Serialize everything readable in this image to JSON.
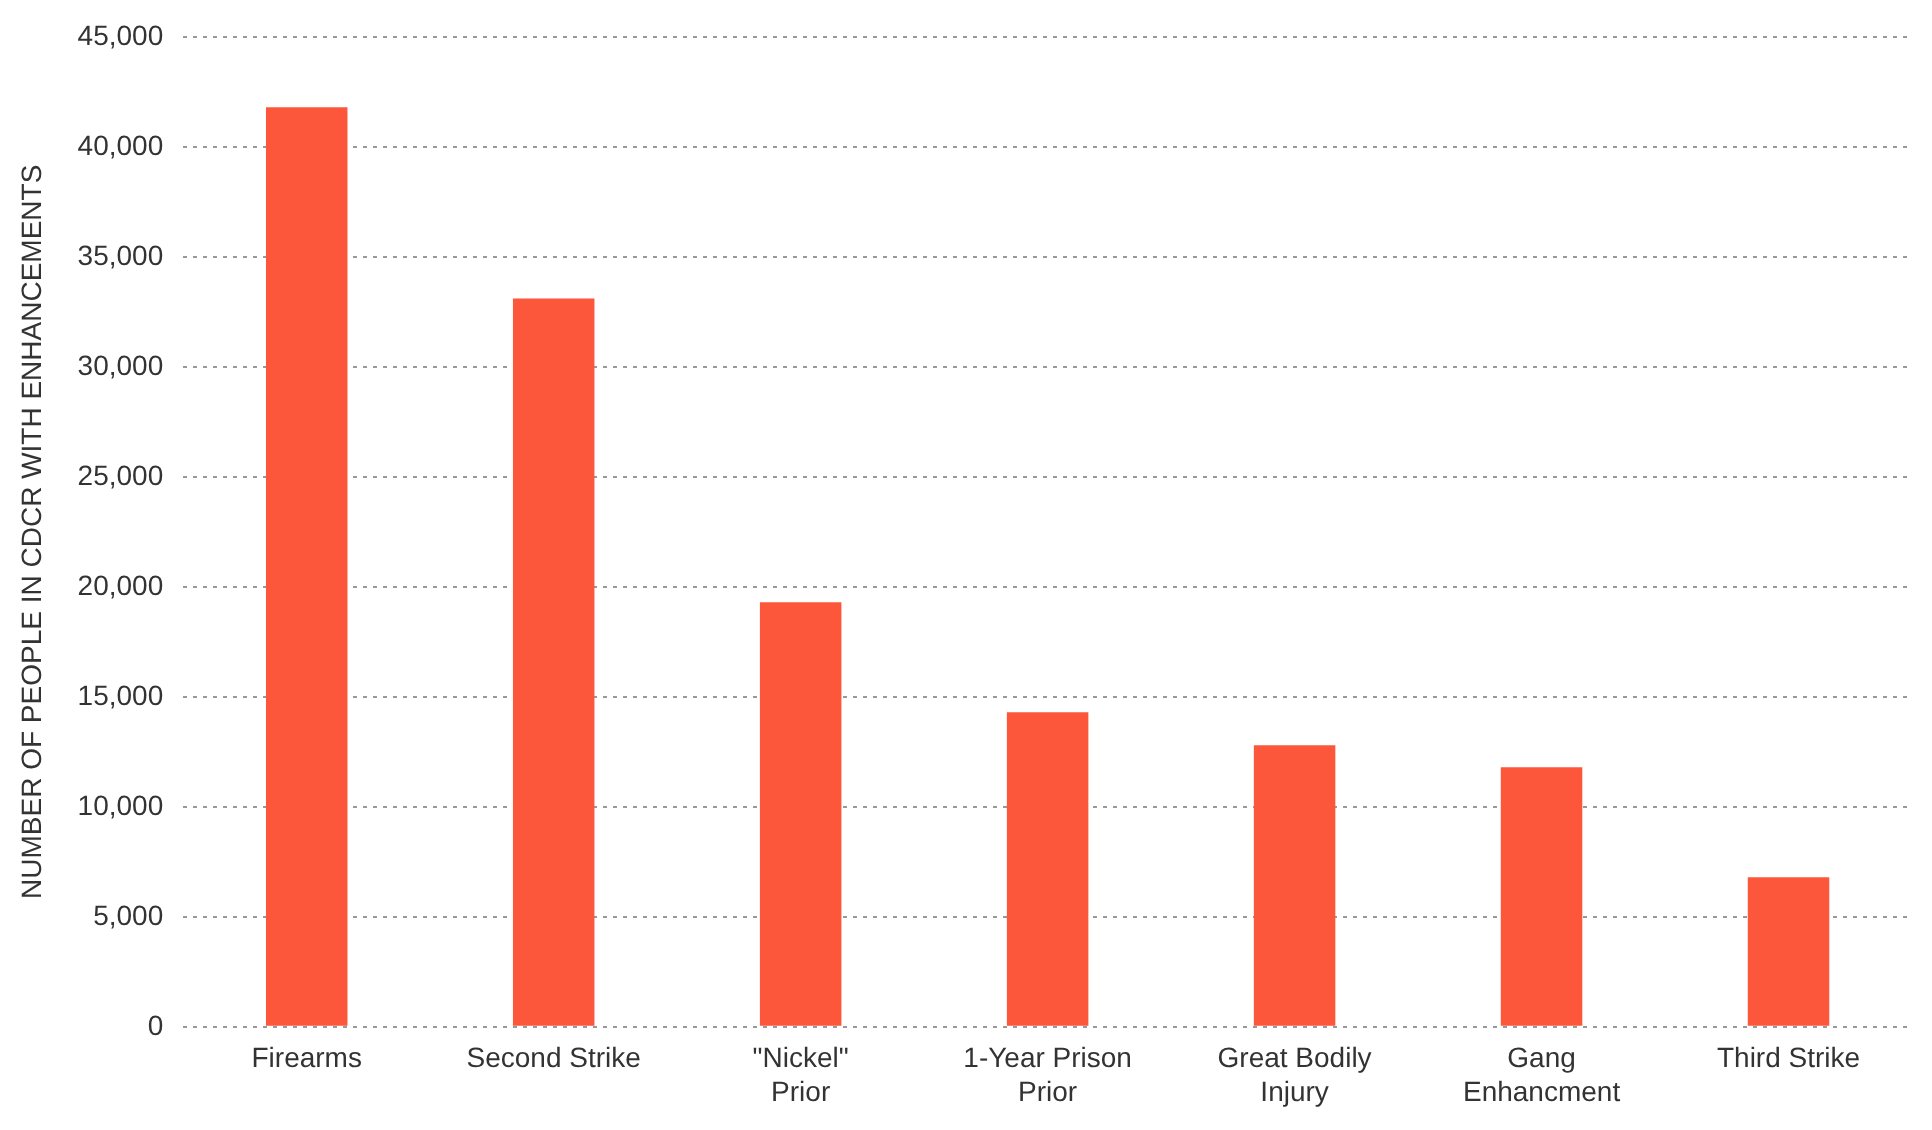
{
  "chart_data": {
    "type": "bar",
    "ylabel": "NUMBER OF PEOPLE IN CDCR WITH ENHANCEMENTS",
    "categories": [
      "Firearms",
      "Second Strike",
      "\"Nickel\" Prior",
      "1-Year Prison Prior",
      "Great Bodily Injury",
      "Gang Enhancment",
      "Third Strike"
    ],
    "values": [
      41800,
      33100,
      19300,
      14300,
      12800,
      11800,
      6800
    ],
    "color": "#fc573b",
    "ylim": [
      0,
      45000
    ],
    "yticks": [
      0,
      {
        "value": 5000,
        "label": "5,000"
      },
      {
        "value": 10000,
        "label": "10,000"
      },
      {
        "value": 15000,
        "label": "15,000"
      },
      {
        "value": 20000,
        "label": "20,000"
      },
      {
        "value": 25000,
        "label": "25,000"
      },
      {
        "value": 30000,
        "label": "30,000"
      },
      {
        "value": 35000,
        "label": "35,000"
      },
      {
        "value": 40000,
        "label": "40,000"
      },
      {
        "value": 45000,
        "label": "45,000"
      }
    ],
    "grid": "y",
    "legend": false
  }
}
